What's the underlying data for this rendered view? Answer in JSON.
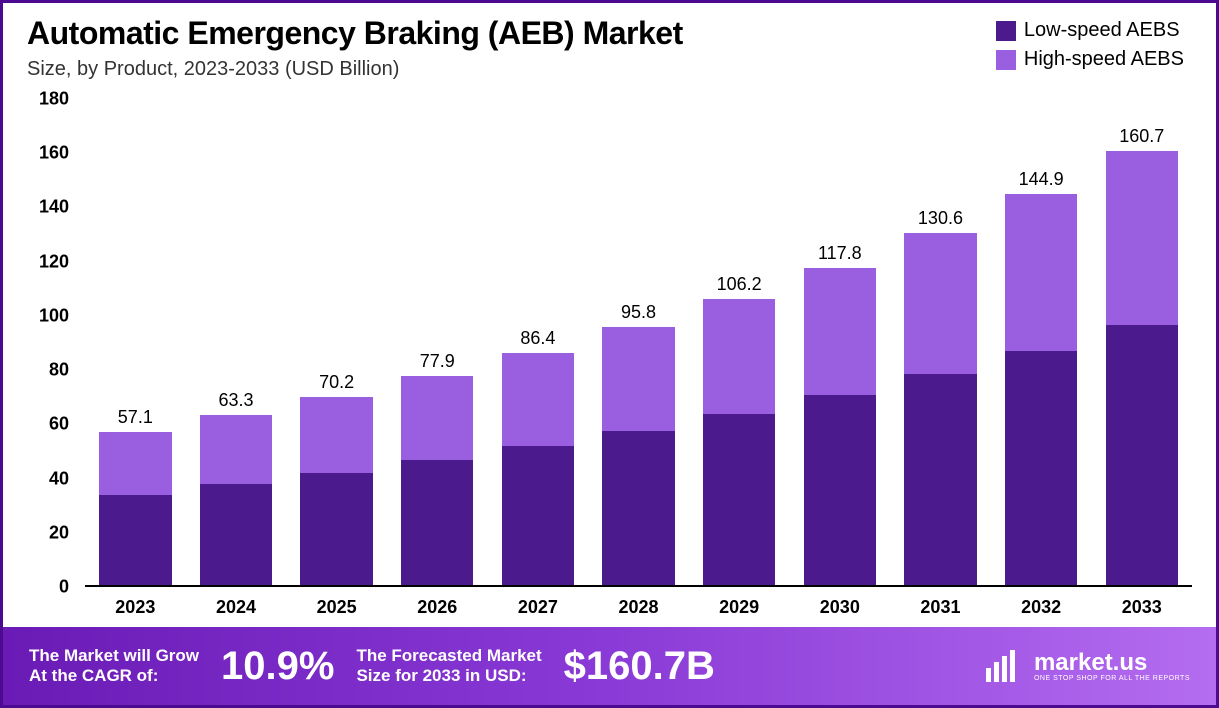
{
  "title": "Automatic Emergency Braking (AEB) Market",
  "subtitle": "Size, by Product, 2023-2033 (USD Billion)",
  "legend": [
    {
      "label": "Low-speed AEBS",
      "color": "#4b1a8c"
    },
    {
      "label": "High-speed AEBS",
      "color": "#9a5fe0"
    }
  ],
  "chart": {
    "type": "stacked-bar",
    "y_max": 180,
    "y_ticks": [
      0,
      20,
      40,
      60,
      80,
      100,
      120,
      140,
      160,
      180
    ],
    "categories": [
      "2023",
      "2024",
      "2025",
      "2026",
      "2027",
      "2028",
      "2029",
      "2030",
      "2031",
      "2032",
      "2033"
    ],
    "totals": [
      57.1,
      63.3,
      70.2,
      77.9,
      86.4,
      95.8,
      106.2,
      117.8,
      130.6,
      144.9,
      160.7
    ],
    "series": [
      {
        "name": "Low-speed AEBS",
        "color": "#4b1a8c",
        "values": [
          34,
          38,
          42,
          47,
          52,
          57.5,
          64,
          71,
          78.5,
          87,
          96.5
        ]
      },
      {
        "name": "High-speed AEBS",
        "color": "#9a5fe0",
        "values": [
          23.1,
          25.3,
          28.2,
          30.9,
          34.4,
          38.3,
          42.2,
          46.8,
          52.1,
          57.9,
          64.2
        ]
      }
    ],
    "title_fontsize": 32,
    "subtitle_fontsize": 20,
    "tick_fontsize": 18,
    "tick_fontweight": 700,
    "datalabel_fontsize": 18,
    "background_color": "#ffffff",
    "border_color": "#4b0a8f",
    "baseline_color": "#000000",
    "bar_width_pct": 72
  },
  "footer": {
    "cagr_label": "The Market will Grow\nAt the CAGR of:",
    "cagr_value": "10.9%",
    "forecast_label": "The Forecasted Market\nSize for 2033 in USD:",
    "forecast_value": "$160.7B",
    "brand_name": "market.us",
    "brand_tagline": "ONE STOP SHOP FOR ALL THE REPORTS",
    "gradient_from": "#6a1ab5",
    "gradient_mid": "#8a3ad6",
    "gradient_to": "#b46cf0",
    "text_color": "#ffffff"
  }
}
